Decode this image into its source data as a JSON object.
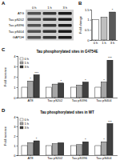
{
  "blot": {
    "label": "A",
    "lanes": [
      "0 h",
      "1 h",
      "3 h"
    ],
    "rows": [
      "ATG",
      "Tau pS202",
      "Tau pS396",
      "Tau pS404",
      "GAPDH"
    ]
  },
  "chart_data": [
    {
      "type": "bar",
      "annotations": [
        "B"
      ],
      "categories": [
        "0 h",
        "1 h",
        "3 h"
      ],
      "values": [
        1,
        1.12,
        1.38
      ],
      "colors": [
        "#ffffff",
        "#bfbfbf",
        "#595959"
      ],
      "significance": [
        null,
        null,
        "*"
      ],
      "ylabel": "Fold change",
      "ylim": [
        0,
        1.5
      ],
      "yticks": [
        0,
        0.5,
        1,
        1.5
      ]
    },
    {
      "type": "bar",
      "annotations": [
        "C"
      ],
      "title": "Tau phosphorylated sites in G4754E",
      "ylabel": "Fold increase",
      "categories": [
        "AT8",
        "Tau pS202",
        "Tau pS396",
        "Tau pS404"
      ],
      "series": [
        {
          "name": "0 h",
          "color": "#ffffff",
          "values": [
            1,
            1,
            1,
            1
          ],
          "significance": [
            null,
            null,
            null,
            null
          ]
        },
        {
          "name": "1 h",
          "color": "#a6a6a6",
          "values": [
            1.6,
            1.3,
            1.2,
            1.5
          ],
          "significance": [
            "*",
            null,
            null,
            "*"
          ]
        },
        {
          "name": "3 h",
          "color": "#404040",
          "values": [
            2.2,
            1.4,
            1.5,
            3.6
          ],
          "significance": [
            "***",
            "*",
            "*",
            "***"
          ]
        }
      ],
      "ylim": [
        0,
        4
      ],
      "yticks": [
        0,
        1,
        2,
        3,
        4
      ],
      "legend": "upper-left"
    },
    {
      "type": "bar",
      "annotations": [
        "D"
      ],
      "title": "Tau phosphorylated sites in WT",
      "ylabel": "Fold increase",
      "categories": [
        "AT8",
        "Tau pS202",
        "Tau pS396",
        "Tau pS404"
      ],
      "series": [
        {
          "name": "0 h",
          "color": "#ffffff",
          "values": [
            1,
            1,
            1,
            1
          ],
          "significance": [
            null,
            null,
            null,
            null
          ]
        },
        {
          "name": "1 h",
          "color": "#a6a6a6",
          "values": [
            1.3,
            1.2,
            1.1,
            1.4
          ],
          "significance": [
            null,
            null,
            null,
            "*"
          ]
        },
        {
          "name": "3 h",
          "color": "#404040",
          "values": [
            1.5,
            1.3,
            1.4,
            3.3
          ],
          "significance": [
            "*",
            null,
            "*",
            "***"
          ]
        }
      ],
      "ylim": [
        0,
        4
      ],
      "yticks": [
        0,
        1,
        2,
        3,
        4
      ],
      "legend": "upper-left"
    }
  ]
}
